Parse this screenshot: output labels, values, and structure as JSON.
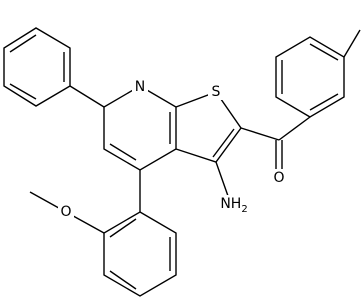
{
  "atoms": {
    "n1": "N",
    "s1": "S",
    "o_carbonyl": "O",
    "nh2": {
      "main": "NH",
      "sub": "2"
    },
    "o_methoxy": "O"
  }
}
